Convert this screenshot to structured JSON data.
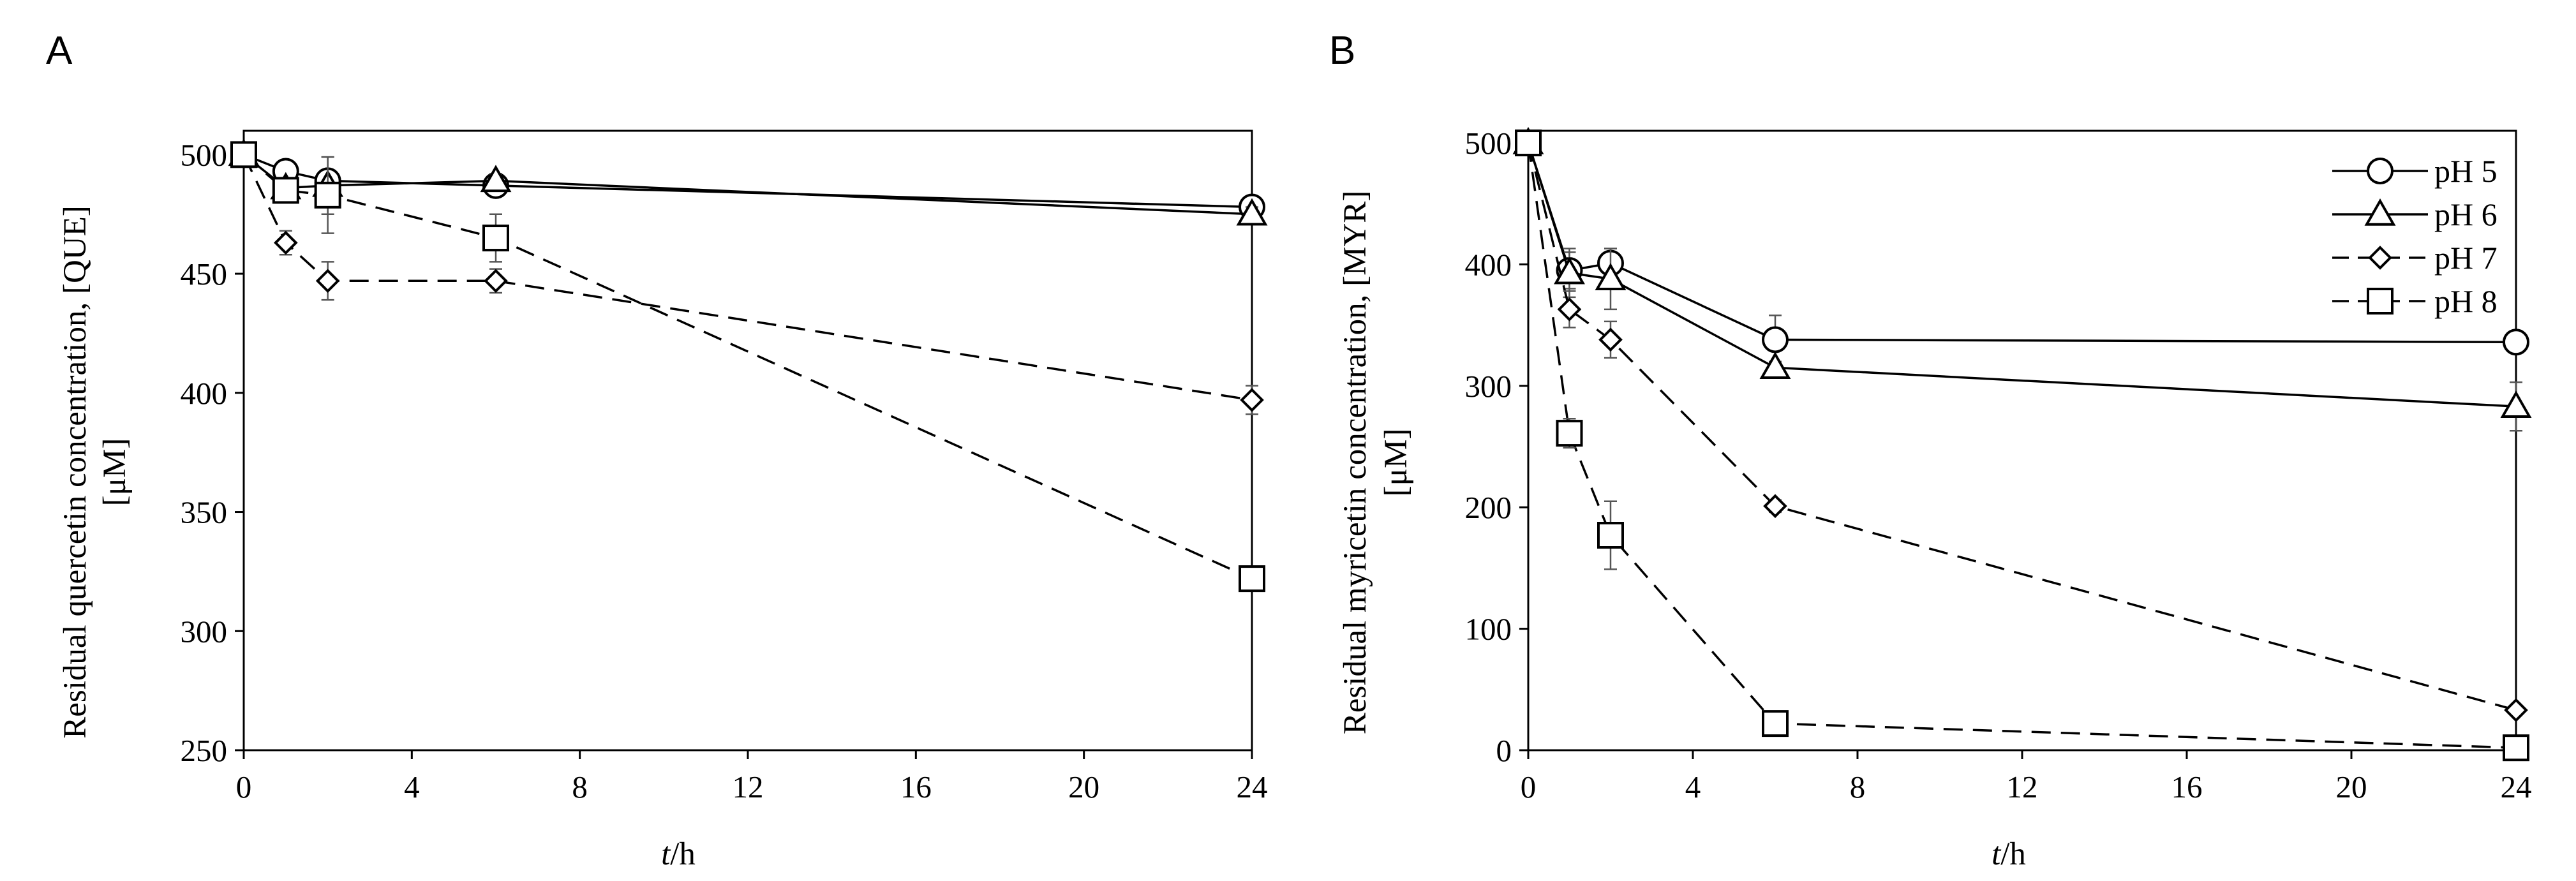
{
  "chart_data": [
    {
      "type": "line",
      "panel_label": "A",
      "ylabel_line1": "Residual quercetin concentration, [QUE]",
      "ylabel_line2": "[μM]",
      "xlabel_italic": "t",
      "xlabel_rest": "/h",
      "xlim": [
        0,
        24
      ],
      "ylim": [
        250,
        510
      ],
      "xticks": [
        0,
        4,
        8,
        12,
        16,
        20,
        24
      ],
      "yticks": [
        250,
        300,
        350,
        400,
        450,
        500
      ],
      "series": [
        {
          "name": "pH 5",
          "marker": "circle",
          "dash": "solid",
          "x": [
            0,
            1,
            2,
            6,
            24
          ],
          "y": [
            500,
            493,
            489,
            487,
            478
          ],
          "err": [
            0,
            3,
            3,
            3,
            3
          ]
        },
        {
          "name": "pH 6",
          "marker": "triangle",
          "dash": "solid",
          "x": [
            0,
            1,
            2,
            6,
            24
          ],
          "y": [
            500,
            486,
            487,
            489,
            475
          ],
          "err": [
            0,
            3,
            12,
            3,
            3
          ]
        },
        {
          "name": "pH 7",
          "marker": "diamond",
          "dash": "dashed",
          "x": [
            0,
            1,
            2,
            6,
            24
          ],
          "y": [
            500,
            463,
            447,
            447,
            397
          ],
          "err": [
            0,
            5,
            8,
            5,
            6
          ]
        },
        {
          "name": "pH 8",
          "marker": "square",
          "dash": "dashed",
          "x": [
            0,
            1,
            2,
            6,
            24
          ],
          "y": [
            500,
            485,
            483,
            465,
            322
          ],
          "err": [
            0,
            5,
            16,
            10,
            5
          ]
        }
      ]
    },
    {
      "type": "line",
      "panel_label": "B",
      "ylabel_line1": "Residual myricetin concentration, [MYR]",
      "ylabel_line2": "[μM]",
      "xlabel_italic": "t",
      "xlabel_rest": "/h",
      "xlim": [
        0,
        24
      ],
      "ylim": [
        0,
        510
      ],
      "xticks": [
        0,
        4,
        8,
        12,
        16,
        20,
        24
      ],
      "yticks": [
        0,
        100,
        200,
        300,
        400,
        500
      ],
      "legend_position": "top-right",
      "series": [
        {
          "name": "pH 5",
          "marker": "circle",
          "dash": "solid",
          "x": [
            0,
            1,
            2,
            6,
            24
          ],
          "y": [
            500,
            395,
            401,
            338,
            336
          ],
          "err": [
            0,
            15,
            12,
            20,
            5
          ]
        },
        {
          "name": "pH 6",
          "marker": "triangle",
          "dash": "solid",
          "x": [
            0,
            1,
            2,
            6,
            24
          ],
          "y": [
            500,
            393,
            388,
            315,
            283
          ],
          "err": [
            0,
            20,
            25,
            5,
            20
          ]
        },
        {
          "name": "pH 7",
          "marker": "diamond",
          "dash": "dashed",
          "x": [
            0,
            1,
            2,
            6,
            24
          ],
          "y": [
            500,
            363,
            338,
            201,
            33
          ],
          "err": [
            0,
            15,
            15,
            5,
            3
          ]
        },
        {
          "name": "pH 8",
          "marker": "square",
          "dash": "dashed",
          "x": [
            0,
            1,
            2,
            6,
            24
          ],
          "y": [
            500,
            261,
            177,
            22,
            2
          ],
          "err": [
            0,
            12,
            28,
            4,
            2
          ]
        }
      ]
    }
  ]
}
